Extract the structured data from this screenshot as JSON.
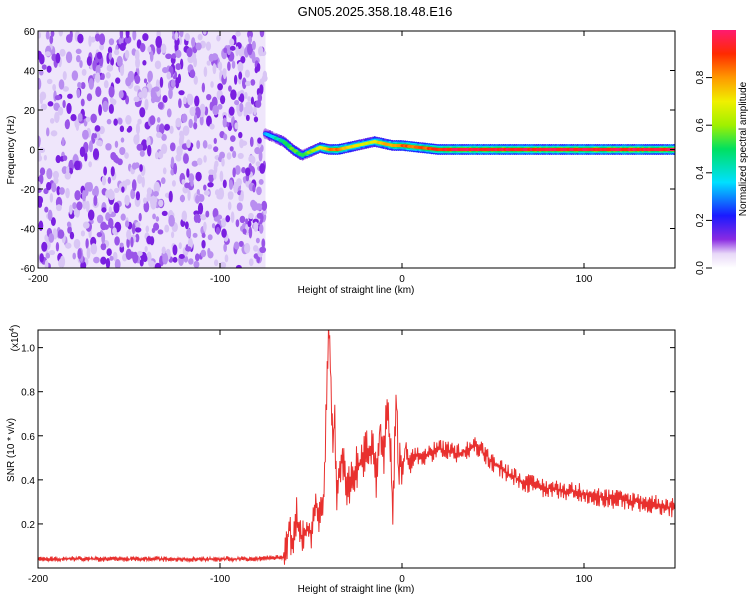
{
  "title": "GN05.2025.358.18.48.E16",
  "chart_data": [
    {
      "type": "heatmap",
      "xlabel": "Height of straight line (km)",
      "ylabel": "Frequency (Hz)",
      "xlim": [
        -200,
        150
      ],
      "ylim": [
        -60,
        60
      ],
      "xticks": [
        -200,
        -100,
        0,
        100
      ],
      "xticklabels": [
        "-200",
        "-100",
        "0",
        "100"
      ],
      "yticks": [
        -60,
        -40,
        -20,
        0,
        20,
        40,
        60
      ],
      "yticklabels": [
        "-60",
        "-40",
        "-20",
        "0",
        "20",
        "40",
        "60"
      ],
      "colorbar": {
        "label": "Normalized spectral amplitude",
        "range": [
          0,
          1
        ],
        "ticks": [
          0.0,
          0.2,
          0.4,
          0.6,
          0.8
        ],
        "ticklabels": [
          "0.0",
          "0.2",
          "0.4",
          "0.6",
          "0.8"
        ]
      },
      "noise_region_x": [
        -200,
        -75
      ],
      "ridge": {
        "x": [
          -75,
          -70,
          -65,
          -60,
          -55,
          -50,
          -45,
          -40,
          -35,
          -30,
          -25,
          -20,
          -15,
          -10,
          -5,
          0,
          10,
          20,
          30,
          40,
          60,
          80,
          100,
          120,
          150
        ],
        "frequency": [
          8,
          6,
          4,
          0,
          -3,
          -1,
          1,
          0,
          0,
          1,
          2,
          3,
          4,
          3,
          2,
          2,
          1,
          0,
          0,
          0,
          0,
          0,
          0,
          0,
          0
        ],
        "amplitude": [
          0.3,
          0.4,
          0.5,
          0.55,
          0.5,
          0.6,
          0.7,
          0.8,
          0.85,
          0.75,
          0.7,
          0.65,
          0.7,
          0.75,
          0.8,
          0.85,
          0.85,
          0.9,
          0.95,
          0.95,
          0.95,
          0.95,
          0.95,
          0.95,
          0.95
        ]
      }
    },
    {
      "type": "line",
      "xlabel": "Height of straight line (km)",
      "ylabel": "SNR (10 * v/v)",
      "yscale_label": "(x10",
      "yscale_exponent": "4",
      "scale_factor": 10000,
      "xlim": [
        -200,
        150
      ],
      "ylim": [
        0,
        10800
      ],
      "xticks": [
        -200,
        -100,
        0,
        100
      ],
      "xticklabels": [
        "-200",
        "-100",
        "0",
        "100"
      ],
      "yticks": [
        2000,
        4000,
        6000,
        8000,
        10000
      ],
      "yticklabels": [
        "0.2",
        "0.4",
        "0.6",
        "0.8",
        "1.0"
      ],
      "series": [
        {
          "color": "#e8302e",
          "x": [
            -200,
            -180,
            -160,
            -140,
            -120,
            -100,
            -80,
            -70,
            -65,
            -62,
            -60,
            -58,
            -55,
            -52,
            -50,
            -47,
            -45,
            -43,
            -41,
            -40,
            -39,
            -38,
            -37,
            -36,
            -35,
            -33,
            -30,
            -27,
            -25,
            -22,
            -20,
            -18,
            -16,
            -14,
            -12,
            -10,
            -8,
            -6,
            -5,
            -4,
            -3,
            -2,
            -1,
            0,
            2,
            4,
            6,
            8,
            10,
            15,
            20,
            25,
            30,
            35,
            40,
            45,
            50,
            55,
            60,
            70,
            80,
            90,
            100,
            110,
            120,
            130,
            140,
            150
          ],
          "y": [
            400,
            420,
            400,
            410,
            400,
            410,
            420,
            460,
            500,
            1800,
            900,
            2400,
            1200,
            2000,
            1500,
            2800,
            2300,
            3200,
            9000,
            11000,
            8500,
            5200,
            7000,
            3300,
            4000,
            5200,
            3500,
            4200,
            4600,
            4800,
            5500,
            5000,
            5800,
            3800,
            6500,
            5000,
            7700,
            4800,
            2000,
            5500,
            8000,
            4000,
            5200,
            4300,
            5500,
            4600,
            5000,
            5100,
            5000,
            5200,
            5400,
            5300,
            5200,
            5300,
            5600,
            5200,
            4800,
            4500,
            4200,
            3800,
            3600,
            3500,
            3400,
            3200,
            3100,
            3000,
            2900,
            2700
          ]
        }
      ]
    }
  ]
}
